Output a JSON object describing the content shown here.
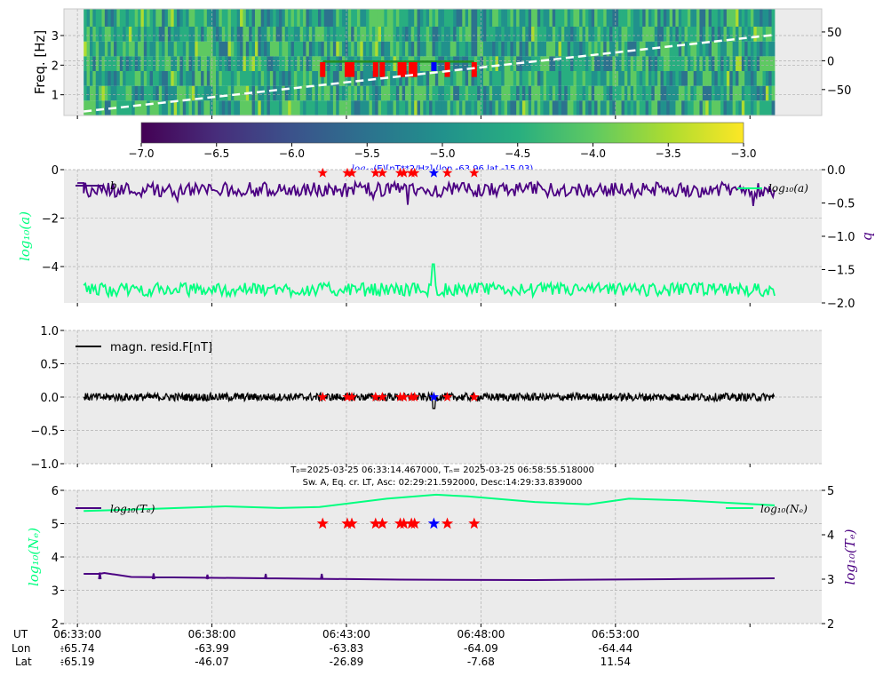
{
  "colors": {
    "panel_bg": "#ebebeb",
    "grid": "#b0b0b0",
    "purple": "#4b0082",
    "green": "#00ff7f",
    "red_star": "#ff0000",
    "blue_star": "#0000ff",
    "dash": "#ffffff",
    "spec_bar": "#228b22",
    "top_title_color": "#0000ff"
  },
  "time_axis": {
    "ticks": [
      "06:33:00",
      "06:38:00",
      "06:43:00",
      "06:48:00",
      "06:53:00"
    ],
    "data_start": "06:33:14",
    "data_end": "06:58:55",
    "axis_start": "06:32:30",
    "axis_end": "07:00:40",
    "footer": {
      "ut_label": "UT",
      "lon_label": "Lon",
      "lat_label": "Lat",
      "colon": ":",
      "lon_values": [
        "-65.74",
        "-63.99",
        "-63.83",
        "-64.09",
        "-64.44"
      ],
      "lat_values": [
        "-65.19",
        "-46.07",
        "-26.89",
        "-7.68",
        "11.54"
      ]
    }
  },
  "events": {
    "red_times": [
      "06:42:07",
      "06:43:02",
      "06:43:12",
      "06:44:05",
      "06:44:20",
      "06:45:00",
      "06:45:08",
      "06:45:25",
      "06:45:32",
      "06:46:45",
      "06:47:45"
    ],
    "blue_time": "06:46:15"
  },
  "chart_data": [
    {
      "id": "spectrogram",
      "type": "heatmap",
      "ylabel": "Freq. [Hz]",
      "y_ticks": [
        "1",
        "2",
        "3"
      ],
      "ylim": [
        0.3,
        3.9
      ],
      "y2_ticks": [
        "50",
        "0",
        "−50"
      ],
      "y2lim": [
        -95,
        90
      ],
      "dashed_line": {
        "y2_start": -88,
        "y2_end": 45
      },
      "colorbar": {
        "ticks": [
          "−7.0",
          "−6.5",
          "−6.0",
          "−5.5",
          "−5.0",
          "−4.5",
          "−4.0",
          "−3.5",
          "−3.0"
        ],
        "range": [
          -7.0,
          -3.0
        ],
        "colormap": "viridis",
        "label_prefix": "log",
        "label_sub": "10",
        "label_rest": "(E)[nT**2/Hz] (lon -63.96 lat -15.03)"
      },
      "typical_value": -4.6
    },
    {
      "id": "coefficients",
      "type": "line",
      "ylabel_left": "log₁₀(a)",
      "ylabel_right": "b",
      "y_ticks": [
        "0",
        "−2",
        "−4"
      ],
      "ylim": [
        -5.5,
        0
      ],
      "y2_ticks": [
        "0.0",
        "−0.5",
        "−1.0",
        "−1.5",
        "−2.0"
      ],
      "y2lim": [
        -2.0,
        0.0
      ],
      "legend_left": "b",
      "legend_right": "log₁₀(a)",
      "series": [
        {
          "name": "b",
          "axis": "right",
          "mean": -0.3,
          "flat_start": -0.2
        },
        {
          "name": "log₁₀(a)",
          "axis": "left",
          "mean": -4.95,
          "spike": -3.9
        }
      ],
      "star_y": -0.05
    },
    {
      "id": "residual",
      "type": "line",
      "ylim": [
        -1.0,
        1.0
      ],
      "y_ticks": [
        "1.0",
        "0.5",
        "0.0",
        "−0.5",
        "−1.0"
      ],
      "legend": "magn. resid.F[nT]",
      "series": [
        {
          "name": "magn. resid.F[nT]",
          "mean": 0.0,
          "amplitude": 0.06
        }
      ],
      "star_y": 0.0
    },
    {
      "id": "plasma",
      "type": "line",
      "title_line1": "T₀=2025-03-25 06:33:14.467000, Tₙ= 2025-03-25 06:58:55.518000",
      "title_line2": "Sw. A, Eq. cr. LT, Asc: 02:29:21.592000, Desc:14:29:33.839000",
      "ylabel_left": "log₁₀(Nₑ)",
      "ylabel_right": "log₁₀(Tₑ)",
      "y_ticks": [
        "6",
        "5",
        "4",
        "3",
        "2"
      ],
      "ylim": [
        2,
        6
      ],
      "y2_ticks": [
        "5",
        "4",
        "3",
        "2"
      ],
      "y2lim": [
        2,
        5
      ],
      "legend_left": "log₁₀(Tₑ)",
      "legend_right": "log₁₀(Nₑ)",
      "series": [
        {
          "name": "log₁₀(Nₑ)",
          "axis": "left",
          "times": [
            "06:33:14",
            "06:36:00",
            "06:38:30",
            "06:40:30",
            "06:42:00",
            "06:44:30",
            "06:46:20",
            "06:47:30",
            "06:50:00",
            "06:52:00",
            "06:53:30",
            "06:55:30",
            "06:58:55"
          ],
          "values": [
            5.38,
            5.45,
            5.52,
            5.47,
            5.5,
            5.75,
            5.87,
            5.82,
            5.65,
            5.58,
            5.75,
            5.7,
            5.55
          ]
        },
        {
          "name": "log₁₀(Tₑ)",
          "axis": "right",
          "times": [
            "06:33:14",
            "06:33:50",
            "06:34:00",
            "06:35:00",
            "06:40:00",
            "06:45:00",
            "06:50:00",
            "06:55:00",
            "06:58:55"
          ],
          "values": [
            3.12,
            3.12,
            3.14,
            3.05,
            3.02,
            2.99,
            2.98,
            3.0,
            3.02
          ],
          "spike_times": [
            "06:33:50",
            "06:35:50",
            "06:37:50",
            "06:40:00",
            "06:42:05"
          ],
          "spike_values": [
            3.15,
            3.13,
            3.1,
            3.12,
            3.12
          ]
        }
      ],
      "star_y": 5.0
    }
  ]
}
